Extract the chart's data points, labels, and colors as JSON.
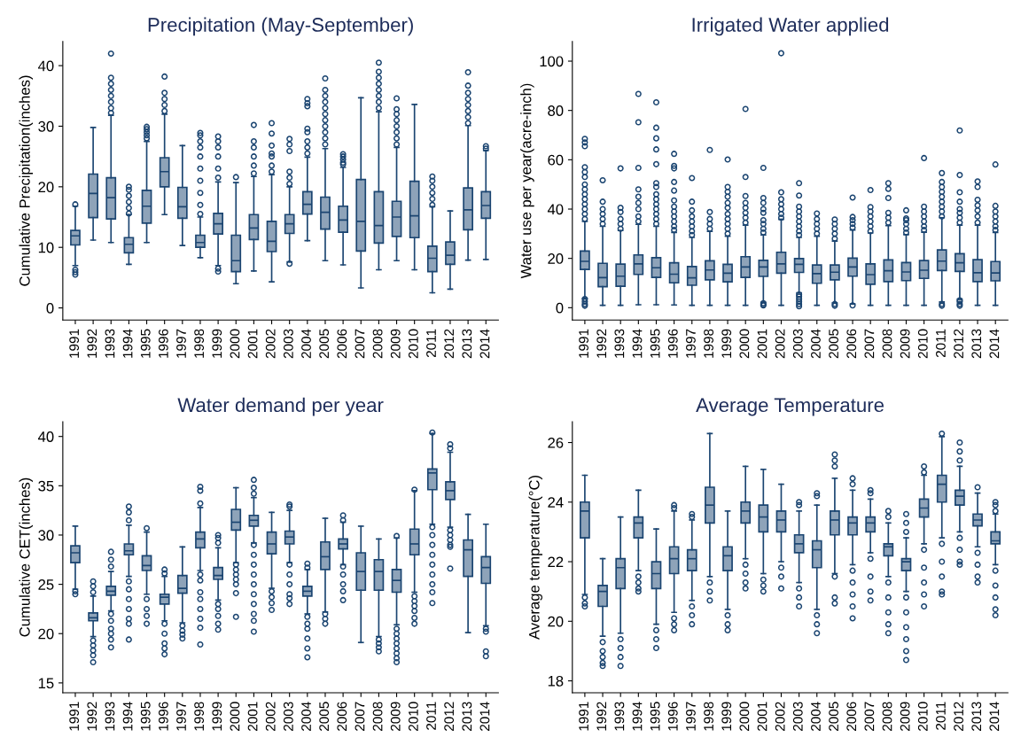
{
  "chart_data": [
    {
      "type": "box",
      "title": "Precipitation (May-September)",
      "ylabel": "Cumulative Precipitation(inches)",
      "color": "#8ea3b9",
      "ylim": [
        -2,
        44
      ],
      "yticks": [
        0,
        10,
        20,
        30,
        40
      ],
      "categories": [
        "1991",
        "1992",
        "1993",
        "1994",
        "1995",
        "1996",
        "1997",
        "1998",
        "1999",
        "2000",
        "2001",
        "2002",
        "2003",
        "2004",
        "2005",
        "2006",
        "2007",
        "2008",
        "2009",
        "2010",
        "2011",
        "2012",
        "2013",
        "2014"
      ],
      "boxes": [
        {
          "low": 7,
          "q1": 10.4,
          "median": 11.9,
          "q3": 12.8,
          "high": 16.8,
          "outliers": [
            17.1,
            6.3,
            5.9,
            5.5
          ]
        },
        {
          "low": 11.2,
          "q1": 14.9,
          "median": 18.9,
          "q3": 22.1,
          "high": 29.8
        },
        {
          "low": 10.8,
          "q1": 14.7,
          "median": 18.2,
          "q3": 21.5,
          "high": 31.8,
          "outliers": [
            32.2,
            33,
            34,
            35,
            36,
            37,
            38,
            42
          ]
        },
        {
          "low": 7.2,
          "q1": 9.1,
          "median": 10.5,
          "q3": 11.6,
          "high": 15.4,
          "outliers": [
            15.6,
            16.5,
            17.5,
            18.5,
            19.5,
            20
          ]
        },
        {
          "low": 10.8,
          "q1": 14,
          "median": 16.8,
          "q3": 19.4,
          "high": 27.5,
          "outliers": [
            28,
            28.5,
            29,
            29.5,
            29.9
          ]
        },
        {
          "low": 15.4,
          "q1": 20,
          "median": 22.5,
          "q3": 24.8,
          "high": 32,
          "outliers": [
            32.5,
            33.5,
            34.5,
            35.5,
            38.2
          ]
        },
        {
          "low": 10.3,
          "q1": 14.8,
          "median": 16.7,
          "q3": 19.9,
          "high": 26.8
        },
        {
          "low": 8.3,
          "q1": 10,
          "median": 10.8,
          "q3": 12,
          "high": 15,
          "outliers": [
            15.5,
            17,
            19,
            21,
            23,
            25,
            26.5,
            27.5,
            28.5,
            28.9
          ]
        },
        {
          "low": 7,
          "q1": 12.2,
          "median": 13.9,
          "q3": 15.6,
          "high": 20.8,
          "outliers": [
            6.5,
            6,
            21.5,
            23,
            25,
            26.5,
            27.5,
            28.3
          ]
        },
        {
          "low": 4,
          "q1": 6,
          "median": 7.8,
          "q3": 12,
          "high": 20.7,
          "outliers": [
            21.6
          ]
        },
        {
          "low": 6.1,
          "q1": 11.3,
          "median": 13.2,
          "q3": 15.4,
          "high": 21.7,
          "outliers": [
            22.2,
            23.5,
            25,
            26.5,
            27.5,
            30.2
          ]
        },
        {
          "low": 4.3,
          "q1": 9.3,
          "median": 11,
          "q3": 14.3,
          "high": 22,
          "outliers": [
            22.5,
            23.5,
            25,
            25.5,
            26.8,
            28.8,
            30.5
          ]
        },
        {
          "low": 7.6,
          "q1": 12.3,
          "median": 13.9,
          "q3": 15.4,
          "high": 20,
          "outliers": [
            7.3,
            20.5,
            21.5,
            22.5,
            25.9,
            27,
            27.9
          ]
        },
        {
          "low": 11.1,
          "q1": 15.5,
          "median": 17.1,
          "q3": 19.2,
          "high": 24.9,
          "outliers": [
            25.5,
            26.5,
            27.5,
            29,
            29.6,
            33.3,
            33.8,
            34.5
          ]
        },
        {
          "low": 7.8,
          "q1": 13,
          "median": 15.8,
          "q3": 18.3,
          "high": 26.3,
          "outliers": [
            27,
            28,
            29,
            30,
            31,
            32,
            33,
            34,
            35,
            36,
            37.9
          ]
        },
        {
          "low": 7.1,
          "q1": 12.5,
          "median": 14.5,
          "q3": 16.8,
          "high": 23.2,
          "outliers": [
            23.7,
            24,
            24.5,
            25,
            25.4
          ]
        },
        {
          "low": 3.3,
          "q1": 9.4,
          "median": 14.3,
          "q3": 21.2,
          "high": 34.7
        },
        {
          "low": 6.3,
          "q1": 10.7,
          "median": 13.6,
          "q3": 19.2,
          "high": 32.4,
          "outliers": [
            33,
            34,
            35,
            36,
            37,
            38,
            39,
            40.5
          ]
        },
        {
          "low": 7.8,
          "q1": 11.8,
          "median": 15,
          "q3": 17.6,
          "high": 26.5,
          "outliers": [
            27,
            28,
            29,
            30,
            31,
            32,
            32.8,
            34.6
          ]
        },
        {
          "low": 6.3,
          "q1": 11.6,
          "median": 15.2,
          "q3": 20.9,
          "high": 33.6
        },
        {
          "low": 2.5,
          "q1": 6,
          "median": 8.2,
          "q3": 10.2,
          "high": 16.7,
          "outliers": [
            17,
            18,
            19,
            20,
            21,
            21.7
          ]
        },
        {
          "low": 3.1,
          "q1": 7.2,
          "median": 8.7,
          "q3": 10.9,
          "high": 16
        },
        {
          "low": 7.9,
          "q1": 12.9,
          "median": 16.2,
          "q3": 19.8,
          "high": 30.1,
          "outliers": [
            30.5,
            31.5,
            32.5,
            33.5,
            34.5,
            35.5,
            36.7,
            38.9
          ]
        },
        {
          "low": 8,
          "q1": 14.8,
          "median": 16.9,
          "q3": 19.2,
          "high": 26,
          "outliers": [
            26.3,
            26.7
          ]
        }
      ]
    },
    {
      "type": "box",
      "title": "Irrigated Water applied",
      "ylabel": "Water use per year(acre-inch)",
      "color": "#8ea3b9",
      "ylim": [
        -5,
        108
      ],
      "yticks": [
        0,
        20,
        40,
        60,
        80,
        100
      ],
      "categories": [
        "1991",
        "1992",
        "1993",
        "1994",
        "1995",
        "1996",
        "1997",
        "1998",
        "1999",
        "2000",
        "2001",
        "2002",
        "2003",
        "2004",
        "2005",
        "2006",
        "2007",
        "2008",
        "2009",
        "2010",
        "2011",
        "2012",
        "2013",
        "2014"
      ],
      "boxes": [
        {
          "low": 3.8,
          "q1": 15.5,
          "median": 18.8,
          "q3": 23,
          "high": 35,
          "outliers": [
            0.8,
            1.5,
            2.5,
            3.5,
            36,
            38,
            40,
            42,
            44,
            46,
            48,
            50,
            53,
            55,
            57,
            65.5,
            67,
            68.5
          ]
        },
        {
          "low": 1,
          "q1": 8.5,
          "median": 12.2,
          "q3": 18,
          "high": 33,
          "outliers": [
            34,
            36,
            38,
            40,
            43,
            51.7
          ]
        },
        {
          "low": 1,
          "q1": 8.7,
          "median": 12.8,
          "q3": 17.7,
          "high": 31.3,
          "outliers": [
            32,
            34,
            36,
            38.8,
            40.5,
            56.5
          ]
        },
        {
          "low": 1.2,
          "q1": 13.5,
          "median": 17.8,
          "q3": 21.4,
          "high": 33.8,
          "outliers": [
            35,
            37,
            40,
            42.5,
            45,
            48,
            56.7,
            75.2,
            86.7
          ]
        },
        {
          "low": 1.2,
          "q1": 12.3,
          "median": 16.2,
          "q3": 20.3,
          "high": 33,
          "outliers": [
            34,
            36,
            38,
            40,
            42,
            44,
            46,
            49,
            50.5,
            58.2,
            64.2,
            68.7,
            73,
            83.3
          ]
        },
        {
          "low": 1.1,
          "q1": 10.1,
          "median": 13.6,
          "q3": 18.2,
          "high": 30.5,
          "outliers": [
            31.5,
            33,
            35,
            37,
            39,
            41,
            43.5,
            47.5,
            51,
            56.5,
            57.5,
            62.4
          ]
        },
        {
          "low": 1,
          "q1": 9.1,
          "median": 12.1,
          "q3": 16.7,
          "high": 28.5,
          "outliers": [
            29.5,
            31,
            33,
            35,
            37,
            39.5,
            43,
            52.6
          ]
        },
        {
          "low": 1,
          "q1": 11.3,
          "median": 15.3,
          "q3": 19,
          "high": 31,
          "outliers": [
            32,
            34,
            36,
            38.8,
            64
          ]
        },
        {
          "low": 1,
          "q1": 10.5,
          "median": 14,
          "q3": 17.6,
          "high": 29,
          "outliers": [
            30,
            32,
            34,
            36,
            38,
            40.5,
            42.5,
            45,
            47,
            49,
            60.1
          ]
        },
        {
          "low": 1,
          "q1": 12.3,
          "median": 16.5,
          "q3": 20.7,
          "high": 33.5,
          "outliers": [
            34.5,
            36.5,
            38.5,
            40.5,
            42.5,
            45.3,
            53,
            80.6
          ]
        },
        {
          "low": 2.2,
          "q1": 12.7,
          "median": 16.5,
          "q3": 19.2,
          "high": 29.5,
          "outliers": [
            0.9,
            1.3,
            1.8,
            30.5,
            32,
            34,
            35.5,
            38.5,
            40,
            42.5,
            44.5,
            56.7
          ]
        },
        {
          "low": 1,
          "q1": 14,
          "median": 17.8,
          "q3": 22.5,
          "high": 35.8,
          "outliers": [
            36.5,
            38,
            40,
            42,
            44,
            46.8,
            103.2
          ]
        },
        {
          "low": 6,
          "q1": 14.3,
          "median": 17.6,
          "q3": 19.9,
          "high": 28.5,
          "outliers": [
            0.6,
            1.5,
            2.5,
            3.5,
            4.5,
            5.3,
            29.5,
            31,
            33,
            35,
            37,
            39,
            41,
            45.5,
            50.5
          ]
        },
        {
          "low": 1,
          "q1": 9.9,
          "median": 13.8,
          "q3": 17.3,
          "high": 29,
          "outliers": [
            30,
            32,
            34,
            36,
            38.2
          ]
        },
        {
          "low": 2,
          "q1": 11.3,
          "median": 14.4,
          "q3": 17.3,
          "high": 27,
          "outliers": [
            0.8,
            1.5,
            28,
            30,
            32,
            34,
            35.8
          ]
        },
        {
          "low": 1.5,
          "q1": 12.8,
          "median": 16.5,
          "q3": 20.1,
          "high": 31.5,
          "outliers": [
            0.9,
            32.5,
            34,
            35.5,
            36.8,
            44.7
          ]
        },
        {
          "low": 1,
          "q1": 9.5,
          "median": 13.4,
          "q3": 17.8,
          "high": 30.3,
          "outliers": [
            31,
            33,
            35,
            37,
            39,
            40.8,
            47.7
          ]
        },
        {
          "low": 1,
          "q1": 10.6,
          "median": 15,
          "q3": 19.4,
          "high": 33.3,
          "outliers": [
            34.5,
            36.5,
            38.5,
            44.5,
            48.2,
            50.5
          ]
        },
        {
          "low": 1,
          "q1": 11,
          "median": 14.5,
          "q3": 18.3,
          "high": 29.6,
          "outliers": [
            30.5,
            32,
            34,
            35.5,
            36.2,
            39.5
          ]
        },
        {
          "low": 1,
          "q1": 11.9,
          "median": 15.2,
          "q3": 19.1,
          "high": 30.6,
          "outliers": [
            31.5,
            33,
            35,
            37,
            39,
            41,
            60.7
          ]
        },
        {
          "low": 2.3,
          "q1": 15.1,
          "median": 18.9,
          "q3": 23.4,
          "high": 36.5,
          "outliers": [
            0.8,
            1.5,
            37,
            39,
            41,
            43,
            45,
            47,
            49,
            51,
            54.6
          ]
        },
        {
          "low": 3.5,
          "q1": 14.7,
          "median": 18.2,
          "q3": 21.9,
          "high": 33.5,
          "outliers": [
            0.8,
            1.5,
            2.5,
            3,
            34.5,
            36.5,
            38.5,
            40,
            43,
            46.8,
            53.8,
            71.9
          ]
        },
        {
          "low": 1,
          "q1": 10.6,
          "median": 14.2,
          "q3": 19.5,
          "high": 33.5,
          "outliers": [
            34.5,
            37,
            39.5,
            41.5,
            43.8,
            49,
            51.2
          ]
        },
        {
          "low": 1,
          "q1": 10.9,
          "median": 14.1,
          "q3": 18.7,
          "high": 30.5,
          "outliers": [
            31.5,
            33,
            35,
            37,
            39,
            41.3,
            58.1
          ]
        }
      ]
    },
    {
      "type": "box",
      "title": "Water demand per year",
      "ylabel": "Cumulative CET(inches)",
      "color": "#8ea3b9",
      "ylim": [
        14,
        41.5
      ],
      "yticks": [
        15,
        20,
        25,
        30,
        35,
        40
      ],
      "categories": [
        "1991",
        "1992",
        "1993",
        "1994",
        "1995",
        "1996",
        "1997",
        "1998",
        "1999",
        "2000",
        "2001",
        "2002",
        "2003",
        "2004",
        "2005",
        "2006",
        "2007",
        "2008",
        "2009",
        "2010",
        "2011",
        "2012",
        "2013",
        "2014"
      ],
      "boxes": [
        {
          "low": 24.5,
          "q1": 27.2,
          "median": 28.2,
          "q3": 28.9,
          "high": 30.9,
          "outliers": [
            24,
            24.3
          ]
        },
        {
          "low": 19.7,
          "q1": 21.3,
          "median": 21.6,
          "q3": 22.1,
          "high": 23.8,
          "outliers": [
            24.2,
            24.8,
            25.3,
            19.3,
            18.8,
            18.3,
            17.8,
            17.1
          ]
        },
        {
          "low": 22.3,
          "q1": 23.9,
          "median": 24.3,
          "q3": 24.8,
          "high": 26.3,
          "outliers": [
            26.8,
            27.5,
            28.3,
            22,
            21.3,
            20.5,
            20,
            19.4,
            18.6
          ]
        },
        {
          "low": 25.8,
          "q1": 28,
          "median": 28.4,
          "q3": 29.1,
          "high": 31,
          "outliers": [
            31.5,
            32.3,
            32.9,
            25.3,
            24.5,
            23.5,
            22.5,
            21.5,
            21,
            19.4
          ]
        },
        {
          "low": 24,
          "q1": 26.4,
          "median": 26.9,
          "q3": 27.9,
          "high": 30.3,
          "outliers": [
            30.7,
            23.5,
            22.5,
            21.8,
            21
          ]
        },
        {
          "low": 21.3,
          "q1": 23,
          "median": 23.7,
          "q3": 24,
          "high": 25.8,
          "outliers": [
            26.1,
            26.5,
            21,
            20,
            19,
            18.5,
            17.9
          ]
        },
        {
          "low": 21.1,
          "q1": 24.1,
          "median": 24.6,
          "q3": 25.9,
          "high": 28.8,
          "outliers": [
            20.8,
            20.3,
            19.9,
            19.5
          ]
        },
        {
          "low": 26.4,
          "q1": 28.7,
          "median": 29.6,
          "q3": 30.3,
          "high": 32.8,
          "outliers": [
            33.2,
            34.5,
            34.9,
            26,
            25.4,
            24.2,
            23.5,
            22.5,
            21.5,
            20.6,
            18.9
          ]
        },
        {
          "low": 23.4,
          "q1": 25.5,
          "median": 25.9,
          "q3": 26.7,
          "high": 28.7,
          "outliers": [
            29.2,
            29.7,
            30,
            23,
            22.5,
            21.8,
            21,
            20.4
          ]
        },
        {
          "low": 27.2,
          "q1": 30.5,
          "median": 31.3,
          "q3": 32.6,
          "high": 34.8,
          "outliers": [
            27,
            26.5,
            26,
            25.5,
            25,
            24.1,
            21.7
          ]
        },
        {
          "low": 29.2,
          "q1": 30.9,
          "median": 31.5,
          "q3": 32,
          "high": 33.8,
          "outliers": [
            34.2,
            34.8,
            35.6,
            29,
            28,
            27,
            26,
            25,
            24,
            23,
            22,
            21.3,
            20.2
          ]
        },
        {
          "low": 24.6,
          "q1": 28.1,
          "median": 29.1,
          "q3": 30.3,
          "high": 32.3,
          "outliers": [
            24.3,
            23.7,
            23.1,
            22.4
          ]
        },
        {
          "low": 27.2,
          "q1": 29.1,
          "median": 29.8,
          "q3": 30.4,
          "high": 32.5,
          "outliers": [
            32.9,
            33.1,
            27,
            26,
            25,
            24,
            23.6,
            23
          ]
        },
        {
          "low": 22,
          "q1": 23.8,
          "median": 24.3,
          "q3": 24.8,
          "high": 26.5,
          "outliers": [
            26.7,
            27.1,
            21.7,
            21,
            20.5,
            19.5,
            18.5,
            17.6
          ]
        },
        {
          "low": 22.2,
          "q1": 26.5,
          "median": 27.8,
          "q3": 29.3,
          "high": 31.7,
          "outliers": [
            22,
            21.5,
            21
          ]
        },
        {
          "low": 27,
          "q1": 28.6,
          "median": 29.1,
          "q3": 29.6,
          "high": 31.3,
          "outliers": [
            31.5,
            32,
            26.8,
            26,
            25,
            24.3,
            23.4
          ]
        },
        {
          "low": 19.1,
          "q1": 24.4,
          "median": 26.3,
          "q3": 28.2,
          "high": 30.9
        },
        {
          "low": 19.7,
          "q1": 24.4,
          "median": 26.3,
          "q3": 27.5,
          "high": 29.6,
          "outliers": [
            19.4,
            19,
            18.6,
            18.2
          ]
        },
        {
          "low": 20.9,
          "q1": 24.2,
          "median": 25.4,
          "q3": 26.5,
          "high": 29.7,
          "outliers": [
            29.9,
            20.5,
            20,
            19.5,
            19,
            18.5,
            18,
            17.5,
            17.1
          ]
        },
        {
          "low": 24.2,
          "q1": 28,
          "median": 29.1,
          "q3": 30.6,
          "high": 34.5,
          "outliers": [
            34.6,
            23.8,
            23.3,
            22.8,
            22.3,
            21.6,
            21
          ]
        },
        {
          "low": 31.1,
          "q1": 34.6,
          "median": 36.3,
          "q3": 36.7,
          "high": 40.3,
          "outliers": [
            40.4,
            30.8,
            30,
            29,
            28,
            27,
            26,
            25,
            24.2,
            23.1
          ]
        },
        {
          "low": 30.8,
          "q1": 33.6,
          "median": 34.5,
          "q3": 35.4,
          "high": 38.4,
          "outliers": [
            38.8,
            39.2,
            30.5,
            30,
            29.5,
            29,
            28.8,
            26.6
          ]
        },
        {
          "low": 20.1,
          "q1": 25.8,
          "median": 28.5,
          "q3": 29.5,
          "high": 32.1
        },
        {
          "low": 20.8,
          "q1": 25.1,
          "median": 26.7,
          "q3": 27.8,
          "high": 31.1,
          "outliers": [
            20.5,
            20.2,
            18.2,
            17.7
          ]
        }
      ]
    },
    {
      "type": "box",
      "title": "Average Temperature",
      "ylabel": "Average temperature(°C)",
      "color": "#8ea3b9",
      "ylim": [
        17.6,
        26.7
      ],
      "yticks": [
        18,
        20,
        22,
        24,
        26
      ],
      "categories": [
        "1991",
        "1992",
        "1993",
        "1994",
        "1995",
        "1996",
        "1997",
        "1998",
        "1999",
        "2000",
        "2001",
        "2002",
        "2003",
        "2004",
        "2005",
        "2006",
        "2007",
        "2008",
        "2009",
        "2010",
        "2011",
        "2012",
        "2013",
        "2014"
      ],
      "boxes": [
        {
          "low": 20.9,
          "q1": 22.8,
          "median": 23.7,
          "q3": 24,
          "high": 24.9,
          "outliers": [
            20.8,
            20.6,
            20.5
          ]
        },
        {
          "low": 19.5,
          "q1": 20.5,
          "median": 21,
          "q3": 21.2,
          "high": 22.1,
          "outliers": [
            19.3,
            19,
            18.8,
            18.6,
            18.5
          ]
        },
        {
          "low": 19.6,
          "q1": 21.1,
          "median": 21.8,
          "q3": 22.1,
          "high": 23.5,
          "outliers": [
            19.4,
            19.1,
            18.8,
            18.5
          ]
        },
        {
          "low": 21.7,
          "q1": 22.8,
          "median": 23.3,
          "q3": 23.5,
          "high": 24.4,
          "outliers": [
            21.5,
            21.3,
            21.1,
            21
          ]
        },
        {
          "low": 19.9,
          "q1": 21.1,
          "median": 21.6,
          "q3": 22,
          "high": 23.1,
          "outliers": [
            19.7,
            19.4,
            19.1
          ]
        },
        {
          "low": 20.3,
          "q1": 21.6,
          "median": 22.1,
          "q3": 22.5,
          "high": 23.7,
          "outliers": [
            23.8,
            23.9,
            20.1,
            19.9,
            19.7
          ]
        },
        {
          "low": 20.7,
          "q1": 21.7,
          "median": 22.1,
          "q3": 22.4,
          "high": 23.4,
          "outliers": [
            23.5,
            23.6,
            20.5,
            20.2,
            19.9
          ]
        },
        {
          "low": 21.5,
          "q1": 23.3,
          "median": 23.9,
          "q3": 24.5,
          "high": 26.3,
          "outliers": [
            21.3,
            21,
            20.7
          ]
        },
        {
          "low": 20.4,
          "q1": 21.7,
          "median": 22.2,
          "q3": 22.5,
          "high": 23.7,
          "outliers": [
            20.2,
            19.9,
            19.7
          ]
        },
        {
          "low": 22.1,
          "q1": 23.3,
          "median": 23.7,
          "q3": 24,
          "high": 25.2,
          "outliers": [
            21.9,
            21.6,
            21.3,
            21.1
          ]
        },
        {
          "low": 21.6,
          "q1": 23,
          "median": 23.5,
          "q3": 23.9,
          "high": 25.1,
          "outliers": [
            21.4,
            21.2,
            21
          ]
        },
        {
          "low": 22,
          "q1": 23,
          "median": 23.4,
          "q3": 23.7,
          "high": 24.6,
          "outliers": [
            21.8,
            21.5,
            21.1
          ]
        },
        {
          "low": 21.3,
          "q1": 22.3,
          "median": 22.6,
          "q3": 22.9,
          "high": 23.7,
          "outliers": [
            23.9,
            24,
            21.1,
            20.8,
            20.5
          ]
        },
        {
          "low": 20.4,
          "q1": 21.8,
          "median": 22.4,
          "q3": 22.7,
          "high": 23.9,
          "outliers": [
            24.2,
            24.3,
            20.2,
            19.9,
            19.6
          ]
        },
        {
          "low": 21.6,
          "q1": 22.9,
          "median": 23.4,
          "q3": 23.7,
          "high": 24.8,
          "outliers": [
            25.2,
            25.4,
            25.6,
            21.5,
            20.8,
            20.6
          ]
        },
        {
          "low": 21.9,
          "q1": 22.9,
          "median": 23.3,
          "q3": 23.5,
          "high": 24.4,
          "outliers": [
            24.6,
            24.8,
            21.7,
            21.3,
            20.9,
            20.5,
            20.1
          ]
        },
        {
          "low": 22.3,
          "q1": 23,
          "median": 23.3,
          "q3": 23.5,
          "high": 24.1,
          "outliers": [
            24.3,
            24.4,
            22.1,
            21.5,
            21,
            20.7
          ]
        },
        {
          "low": 21.5,
          "q1": 22.2,
          "median": 22.5,
          "q3": 22.6,
          "high": 23.3,
          "outliers": [
            23.5,
            23.7,
            21.3,
            20.8,
            20.3,
            19.9,
            19.6
          ]
        },
        {
          "low": 21,
          "q1": 21.7,
          "median": 22,
          "q3": 22.1,
          "high": 22.8,
          "outliers": [
            23,
            23.3,
            23.6,
            20.8,
            20.3,
            19.8,
            19.4,
            19,
            18.7
          ]
        },
        {
          "low": 22.6,
          "q1": 23.5,
          "median": 23.8,
          "q3": 24.1,
          "high": 24.9,
          "outliers": [
            25,
            25.2,
            22.4,
            21.8,
            21.3,
            20.9,
            20.5
          ]
        },
        {
          "low": 22.8,
          "q1": 24,
          "median": 24.6,
          "q3": 24.9,
          "high": 26.2,
          "outliers": [
            26.3,
            22.6,
            22,
            21.5,
            21,
            20.9
          ]
        },
        {
          "low": 23,
          "q1": 23.9,
          "median": 24.2,
          "q3": 24.4,
          "high": 25.2,
          "outliers": [
            25.4,
            25.7,
            26,
            22.8,
            22.4,
            22,
            21.9
          ]
        },
        {
          "low": 22.5,
          "q1": 23.2,
          "median": 23.4,
          "q3": 23.6,
          "high": 24.3,
          "outliers": [
            24.5,
            22.3,
            21.9,
            21.5,
            21.3
          ]
        },
        {
          "low": 21.9,
          "q1": 22.6,
          "median": 22.7,
          "q3": 23,
          "high": 23.6,
          "outliers": [
            23.7,
            23.9,
            24,
            21.7,
            21.2,
            20.8,
            20.4,
            20.2
          ]
        }
      ]
    }
  ]
}
